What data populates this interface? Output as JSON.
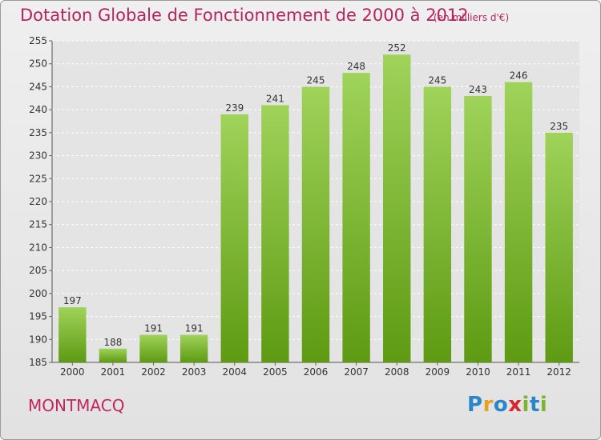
{
  "header": {
    "title": "Dotation Globale de Fonctionnement de 2000 à 2012",
    "unit": "(en milliers d'€)"
  },
  "footer": {
    "commune": "MONTMACQ",
    "logo": "Proxiti",
    "logo_colors": [
      "#2a86c8",
      "#e8a020",
      "#2a86c8",
      "#d8262f",
      "#7ab530",
      "#2a86c8",
      "#7ab530"
    ]
  },
  "colors": {
    "bar_light": "#9fd35a",
    "bar_dark": "#5e9a12",
    "title": "#b3245e",
    "grid": "#ffffff"
  },
  "chart_data": {
    "type": "bar",
    "categories": [
      "2000",
      "2001",
      "2002",
      "2003",
      "2004",
      "2005",
      "2006",
      "2007",
      "2008",
      "2009",
      "2010",
      "2011",
      "2012"
    ],
    "values": [
      197,
      188,
      191,
      191,
      239,
      241,
      245,
      248,
      252,
      245,
      243,
      246,
      235
    ],
    "title": "Dotation Globale de Fonctionnement de 2000 à 2012",
    "ylim": [
      185,
      255
    ],
    "yticks": [
      185,
      190,
      195,
      200,
      205,
      210,
      215,
      220,
      225,
      230,
      235,
      240,
      245,
      250,
      255
    ],
    "grid": true,
    "legend": "none"
  }
}
